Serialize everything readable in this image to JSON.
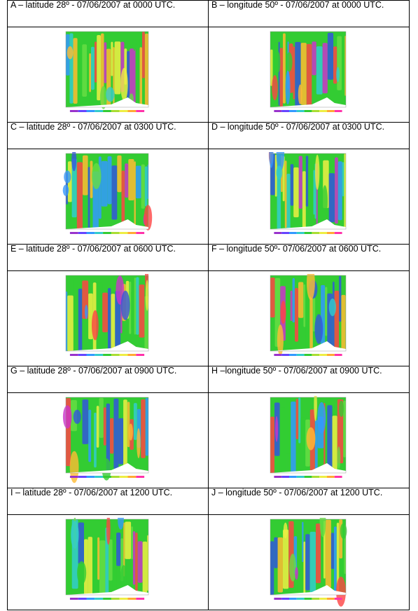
{
  "table": {
    "rows": [
      [
        "A – latitude 28º - 07/06/2007 at 0000 UTC.",
        "B – longitude 50º - 07/06/2007 at 0000 UTC."
      ],
      [
        "C – latitude 28º - 07/06/2007 at 0300 UTC.",
        "D – longitude 50º - 07/06/2007 at 0300 UTC."
      ],
      [
        "E – latitude 28º - 07/06/2007 at 0600 UTC.",
        "F – longitude 50º- 07/06/2007 at 0600 UTC."
      ],
      [
        "G – latitude 28º - 07/06/2007 at 0900 UTC.",
        "H –longitude 50º - 07/06/2007 at 0900 UTC."
      ],
      [
        "I – latitude 28º - 07/06/2007 at 1200 UTC.",
        "J – longitude 50º - 07/06/2007 at 1200 UTC."
      ]
    ]
  }
}
